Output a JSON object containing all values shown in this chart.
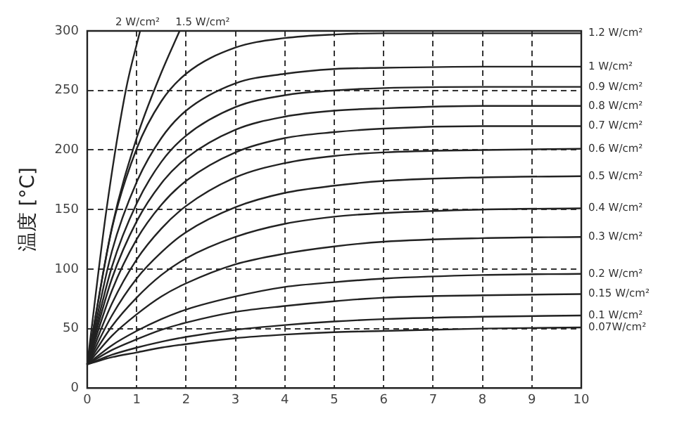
{
  "chart_data": {
    "type": "line",
    "ylabel": "温度 [°C]",
    "xlim": [
      0,
      10
    ],
    "xticks": [
      0,
      1,
      2,
      3,
      4,
      5,
      6,
      7,
      8,
      9,
      10
    ],
    "ylim": [
      0,
      300
    ],
    "yticks": [
      0,
      50,
      100,
      150,
      200,
      250,
      300
    ],
    "grid": true,
    "legend": false,
    "marker": "none",
    "line_style": "solid",
    "series": [
      {
        "name": "2 W/cm²",
        "color": "#222222",
        "x": [
          0,
          0.39,
          0.78,
          1.07
        ],
        "values": [
          20,
          150,
          250,
          300
        ]
      },
      {
        "name": "1.5 W/cm²",
        "color": "#222222",
        "x": [
          0,
          0.5,
          1,
          1.5,
          1.87
        ],
        "values": [
          20,
          135,
          210,
          265,
          300
        ]
      },
      {
        "name": "1.2 W/cm²",
        "color": "#222222",
        "x": [
          0,
          0.5,
          1,
          1.5,
          2,
          3,
          4,
          5,
          6,
          8,
          10
        ],
        "values": [
          20,
          134,
          201,
          241,
          264,
          286,
          294,
          297,
          298,
          298,
          298
        ]
      },
      {
        "name": "1 W/cm²",
        "color": "#222222",
        "x": [
          0,
          0.5,
          1,
          1.5,
          2,
          3,
          4,
          5,
          6,
          8,
          10
        ],
        "values": [
          20,
          115,
          173,
          210,
          233,
          256,
          264,
          268,
          269,
          270,
          270
        ]
      },
      {
        "name": "0.9 W/cm²",
        "color": "#222222",
        "x": [
          0,
          0.5,
          1,
          1.5,
          2,
          3,
          4,
          5,
          6,
          8,
          10
        ],
        "values": [
          20,
          102,
          155,
          190,
          212,
          236,
          246,
          250,
          252,
          253,
          253
        ]
      },
      {
        "name": "0.8 W/cm²",
        "color": "#222222",
        "x": [
          0,
          0.5,
          1,
          1.5,
          2,
          3,
          4,
          5,
          6,
          8,
          10
        ],
        "values": [
          20,
          92,
          140,
          172,
          193,
          217,
          228,
          233,
          235,
          237,
          237
        ]
      },
      {
        "name": "0.7 W/cm²",
        "color": "#222222",
        "x": [
          0,
          0.5,
          1,
          1.5,
          2,
          3,
          4,
          5,
          6,
          8,
          10
        ],
        "values": [
          20,
          82,
          125,
          154,
          174,
          198,
          210,
          215,
          218,
          220,
          220
        ]
      },
      {
        "name": "0.6 W/cm²",
        "color": "#222222",
        "x": [
          0,
          0.5,
          1,
          1.5,
          2,
          3,
          4,
          5,
          6,
          8,
          10
        ],
        "values": [
          20,
          71,
          108,
          134,
          153,
          177,
          189,
          195,
          198,
          200,
          201
        ]
      },
      {
        "name": "0.5 W/cm²",
        "color": "#222222",
        "x": [
          0,
          0.5,
          1,
          1.5,
          2,
          3,
          4,
          5,
          6,
          8,
          10
        ],
        "values": [
          20,
          61,
          92,
          114,
          131,
          152,
          164,
          170,
          174,
          177,
          178
        ]
      },
      {
        "name": "0.4 W/cm²",
        "color": "#222222",
        "x": [
          0,
          0.5,
          1,
          1.5,
          2,
          3,
          4,
          5,
          6,
          8,
          10
        ],
        "values": [
          20,
          52,
          76,
          95,
          109,
          127,
          138,
          144,
          147,
          150,
          151
        ]
      },
      {
        "name": "0.3 W/cm²",
        "color": "#222222",
        "x": [
          0,
          0.5,
          1,
          1.5,
          2,
          3,
          4,
          5,
          6,
          8,
          10
        ],
        "values": [
          20,
          44,
          62,
          77,
          88,
          104,
          113,
          119,
          123,
          126,
          127
        ]
      },
      {
        "name": "0.2 W/cm²",
        "color": "#222222",
        "x": [
          0,
          0.5,
          1,
          1.5,
          2,
          3,
          4,
          5,
          6,
          8,
          10
        ],
        "values": [
          20,
          36,
          48,
          58,
          66,
          77,
          85,
          89,
          92,
          95,
          96
        ]
      },
      {
        "name": "0.15 W/cm²",
        "color": "#222222",
        "x": [
          0,
          0.5,
          1,
          1.5,
          2,
          3,
          4,
          5,
          6,
          8,
          10
        ],
        "values": [
          20,
          32,
          41,
          49,
          55,
          64,
          69,
          73,
          76,
          78,
          79
        ]
      },
      {
        "name": "0.1 W/cm²",
        "color": "#222222",
        "x": [
          0,
          0.5,
          1,
          1.5,
          2,
          3,
          4,
          5,
          6,
          8,
          10
        ],
        "values": [
          20,
          28,
          34,
          39,
          43,
          49,
          53,
          56,
          58,
          60,
          61
        ]
      },
      {
        "name": "0.07W/cm²",
        "color": "#222222",
        "x": [
          0,
          0.5,
          1,
          1.5,
          2,
          3,
          4,
          5,
          6,
          8,
          10
        ],
        "values": [
          20,
          26,
          30,
          34,
          37,
          42,
          45,
          47,
          48,
          50,
          51
        ]
      }
    ]
  }
}
